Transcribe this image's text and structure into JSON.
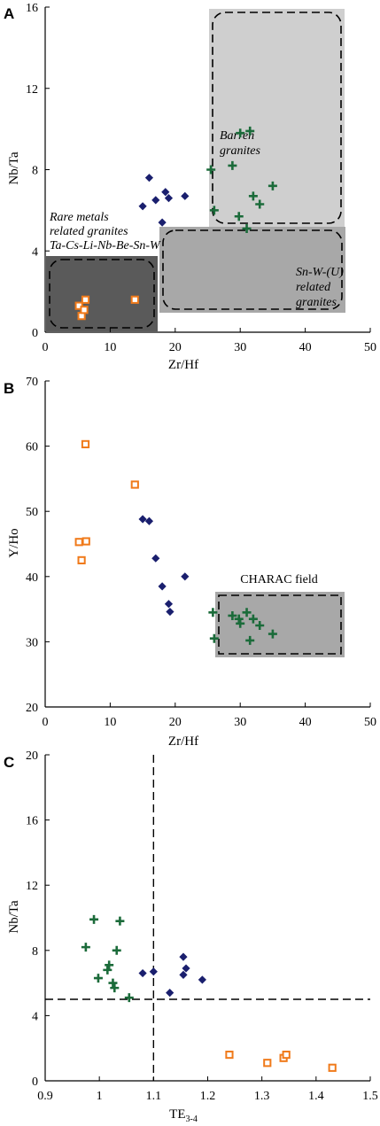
{
  "colors": {
    "diamond": "#1a1f6e",
    "cross": "#1b6b3a",
    "square": "#f07a1a",
    "light_field": "#cfcfcf",
    "mid_field": "#a8a8a8",
    "dark_field": "#5a5a5a"
  },
  "chart_data": [
    {
      "panel": "A",
      "type": "scatter",
      "xlabel": "Zr/Hf",
      "ylabel": "Nb/Ta",
      "xlim": [
        0,
        50
      ],
      "ylim": [
        0,
        16
      ],
      "xticks": [
        "0",
        "10",
        "20",
        "30",
        "40",
        "50"
      ],
      "yticks": [
        "0",
        "4",
        "8",
        "12",
        "16"
      ],
      "fields": [
        {
          "id": "barren",
          "lines": [
            "Barren",
            "granites"
          ],
          "x": [
            25.5,
            44
          ],
          "y": [
            5.2,
            16
          ],
          "fill": "light"
        },
        {
          "id": "snw",
          "lines": [
            "Sn-W-(U)",
            "related",
            "granites"
          ],
          "x": [
            17,
            45.7
          ],
          "y": [
            1.0,
            5.2
          ],
          "fill": "mid"
        },
        {
          "id": "rare",
          "lines": [
            "Rare metals",
            "related granites",
            "Ta-Cs-Li-Nb-Be-Sn-W"
          ],
          "x": [
            0,
            17
          ],
          "y": [
            0,
            3.7
          ],
          "fill": "dark"
        }
      ],
      "series": [
        {
          "marker": "diamond",
          "points": [
            [
              15,
              6.2
            ],
            [
              16,
              7.6
            ],
            [
              17,
              6.5
            ],
            [
              18,
              5.4
            ],
            [
              18.5,
              6.9
            ],
            [
              19,
              6.6
            ],
            [
              21.5,
              6.7
            ]
          ]
        },
        {
          "marker": "cross",
          "points": [
            [
              25.5,
              8.0
            ],
            [
              26,
              6.0
            ],
            [
              28.8,
              8.2
            ],
            [
              29.8,
              5.7
            ],
            [
              30,
              9.8
            ],
            [
              31,
              5.1
            ],
            [
              31.5,
              9.9
            ],
            [
              32,
              6.7
            ],
            [
              33,
              6.3
            ],
            [
              35,
              7.2
            ]
          ]
        },
        {
          "marker": "square",
          "points": [
            [
              5.2,
              1.3
            ],
            [
              5.6,
              0.8
            ],
            [
              6.0,
              1.1
            ],
            [
              6.2,
              1.6
            ],
            [
              13.8,
              1.6
            ]
          ]
        }
      ]
    },
    {
      "panel": "B",
      "type": "scatter",
      "xlabel": "Zr/Hf",
      "ylabel": "Y/Ho",
      "xlim": [
        0,
        50
      ],
      "ylim": [
        20,
        70
      ],
      "xticks": [
        "0",
        "10",
        "20",
        "30",
        "40",
        "50"
      ],
      "yticks": [
        "20",
        "30",
        "40",
        "50",
        "60",
        "70"
      ],
      "fields": [
        {
          "id": "charac",
          "lines": [
            "CHARAC field"
          ],
          "x": [
            25.8,
            45.8
          ],
          "y": [
            24,
            34
          ],
          "fill": "mid"
        }
      ],
      "series": [
        {
          "marker": "diamond",
          "points": [
            [
              15,
              48.8
            ],
            [
              16,
              48.5
            ],
            [
              17,
              42.8
            ],
            [
              18,
              38.5
            ],
            [
              19,
              35.8
            ],
            [
              19.2,
              34.6
            ],
            [
              21.5,
              40.0
            ]
          ]
        },
        {
          "marker": "cross",
          "points": [
            [
              25.8,
              34.5
            ],
            [
              26,
              30.5
            ],
            [
              28.8,
              34.0
            ],
            [
              29.8,
              33.5
            ],
            [
              30,
              32.8
            ],
            [
              31,
              34.5
            ],
            [
              31.5,
              30.2
            ],
            [
              32,
              33.5
            ],
            [
              33,
              32.5
            ],
            [
              35,
              31.2
            ]
          ]
        },
        {
          "marker": "square",
          "points": [
            [
              5.2,
              45.3
            ],
            [
              5.6,
              42.5
            ],
            [
              6.2,
              60.3
            ],
            [
              6.3,
              45.4
            ],
            [
              13.8,
              54.1
            ]
          ]
        }
      ]
    },
    {
      "panel": "C",
      "type": "scatter",
      "xlabel": "TE",
      "xlabel_sub": "3-4",
      "ylabel": "Nb/Ta",
      "xlim": [
        0.9,
        1.5
      ],
      "ylim": [
        0,
        20
      ],
      "xticks": [
        "0.9",
        "1",
        "1.1",
        "1.2",
        "1.3",
        "1.4",
        "1.5"
      ],
      "yticks": [
        "0",
        "4",
        "8",
        "12",
        "16",
        "20"
      ],
      "ref_lines": {
        "x": 1.1,
        "y": 5
      },
      "series": [
        {
          "marker": "diamond",
          "points": [
            [
              1.08,
              6.6
            ],
            [
              1.1,
              6.7
            ],
            [
              1.13,
              5.4
            ],
            [
              1.155,
              6.5
            ],
            [
              1.155,
              7.6
            ],
            [
              1.16,
              6.9
            ],
            [
              1.19,
              6.2
            ]
          ]
        },
        {
          "marker": "cross",
          "points": [
            [
              0.975,
              8.2
            ],
            [
              0.99,
              9.9
            ],
            [
              0.998,
              6.3
            ],
            [
              1.015,
              6.8
            ],
            [
              1.018,
              7.1
            ],
            [
              1.025,
              6.0
            ],
            [
              1.028,
              5.7
            ],
            [
              1.032,
              8.0
            ],
            [
              1.038,
              9.8
            ],
            [
              1.055,
              5.1
            ]
          ]
        },
        {
          "marker": "square",
          "points": [
            [
              1.24,
              1.6
            ],
            [
              1.31,
              1.1
            ],
            [
              1.34,
              1.4
            ],
            [
              1.345,
              1.6
            ],
            [
              1.43,
              0.8
            ]
          ]
        }
      ]
    }
  ]
}
